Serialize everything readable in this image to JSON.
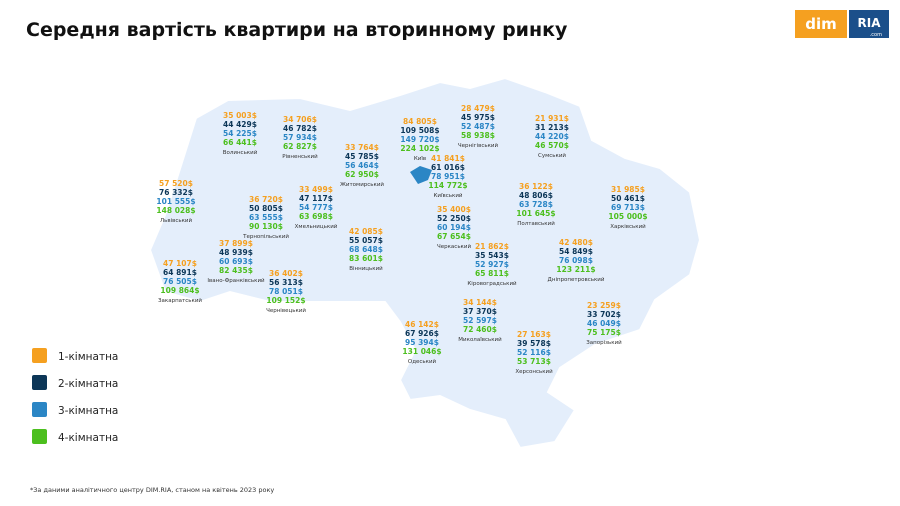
{
  "header": {
    "title": "Середня вартість квартири на вторинному ринку",
    "logo": {
      "left": "dim",
      "right": "RIA",
      "suffix": ".com"
    }
  },
  "legend": [
    {
      "label": "1-кімнатна",
      "color": "#f5a020"
    },
    {
      "label": "2-кімнатна",
      "color": "#0c3657"
    },
    {
      "label": "3-кімнатна",
      "color": "#2b86c5"
    },
    {
      "label": "4-кімнатна",
      "color": "#4cbf1e"
    }
  ],
  "regions": [
    {
      "name": "Волинський",
      "values": [
        "35 003$",
        "44 429$",
        "54 225$",
        "66 441$"
      ]
    },
    {
      "name": "Рівненський",
      "values": [
        "34 706$",
        "46 782$",
        "57 934$",
        "62 827$"
      ]
    },
    {
      "name": "Житомирський",
      "values": [
        "33 764$",
        "45 785$",
        "56 464$",
        "62 950$"
      ]
    },
    {
      "name": "Київ",
      "values": [
        "84 805$",
        "109 508$",
        "149 720$",
        "224 102$"
      ]
    },
    {
      "name": "Чернігівський",
      "values": [
        "28 479$",
        "45 975$",
        "52 487$",
        "58 938$"
      ]
    },
    {
      "name": "Сумський",
      "values": [
        "21 931$",
        "31 213$",
        "44 220$",
        "46 570$"
      ]
    },
    {
      "name": "Київський",
      "values": [
        "41 841$",
        "61 016$",
        "78 951$",
        "114 772$"
      ]
    },
    {
      "name": "Львівський",
      "values": [
        "57 520$",
        "76 332$",
        "101 555$",
        "148 028$"
      ]
    },
    {
      "name": "Тернопільський",
      "values": [
        "36 720$",
        "50 805$",
        "63 555$",
        "90 130$"
      ]
    },
    {
      "name": "Хмельницький",
      "values": [
        "33 499$",
        "47 117$",
        "54 777$",
        "63 698$"
      ]
    },
    {
      "name": "Вінницький",
      "values": [
        "42 085$",
        "55 057$",
        "68 648$",
        "83 601$"
      ]
    },
    {
      "name": "Черкаський",
      "values": [
        "35 400$",
        "52 250$",
        "60 194$",
        "67 654$"
      ]
    },
    {
      "name": "Полтавський",
      "values": [
        "36 122$",
        "48 806$",
        "63 728$",
        "101 645$"
      ]
    },
    {
      "name": "Харківський",
      "values": [
        "31 985$",
        "50 461$",
        "69 713$",
        "105 000$"
      ]
    },
    {
      "name": "Івано-Франківський",
      "values": [
        "37 899$",
        "48 939$",
        "60 693$",
        "82 435$"
      ]
    },
    {
      "name": "Закарпатський",
      "values": [
        "47 107$",
        "64 891$",
        "76 505$",
        "109 864$"
      ]
    },
    {
      "name": "Чернівецький",
      "values": [
        "36 402$",
        "56 313$",
        "78 051$",
        "109 152$"
      ]
    },
    {
      "name": "Кіровоградський",
      "values": [
        "21 862$",
        "35 543$",
        "52 927$",
        "65 811$"
      ]
    },
    {
      "name": "Дніпропетровський",
      "values": [
        "42 480$",
        "54 849$",
        "76 098$",
        "123 211$"
      ]
    },
    {
      "name": "Миколаївський",
      "values": [
        "34 144$",
        "37 370$",
        "52 597$",
        "72 460$"
      ]
    },
    {
      "name": "Одеський",
      "values": [
        "46 142$",
        "67 926$",
        "95 394$",
        "131 046$"
      ]
    },
    {
      "name": "Херсонський",
      "values": [
        "27 163$",
        "39 578$",
        "52 116$",
        "53 713$"
      ]
    },
    {
      "name": "Запорізький",
      "values": [
        "23 259$",
        "33 702$",
        "46 049$",
        "75 175$"
      ]
    }
  ],
  "footnote": "*За даними аналітичного центру DIM.RIA, станом на квітень 2023 року"
}
